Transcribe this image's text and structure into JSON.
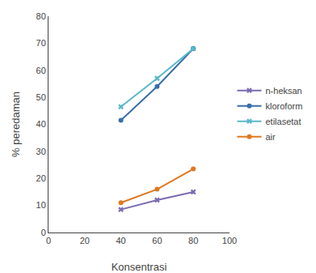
{
  "chart_data": {
    "type": "line",
    "x": [
      40,
      60,
      80
    ],
    "series": [
      {
        "name": "n-heksan",
        "color": "#7B6BB0",
        "marker": "x",
        "line_style": "solid",
        "values": [
          8.5,
          12,
          15
        ]
      },
      {
        "name": "kloroform",
        "color": "#3A6EA8",
        "marker": "circle",
        "line_style": "solid",
        "values": [
          41.5,
          54,
          68
        ]
      },
      {
        "name": "etilasetat",
        "color": "#5BB8C8",
        "marker": "x",
        "line_style": "solid",
        "values": [
          46.5,
          57,
          68
        ]
      },
      {
        "name": "air",
        "color": "#E07820",
        "marker": "circle",
        "line_style": "solid",
        "values": [
          11,
          16,
          23.5
        ]
      }
    ],
    "xlabel": "Konsentrasi",
    "ylabel": "% peredaman",
    "xlim": [
      0,
      100
    ],
    "ylim": [
      0,
      80
    ],
    "xticks": [
      0,
      20,
      40,
      60,
      80,
      100
    ],
    "yticks": [
      0,
      10,
      20,
      30,
      40,
      50,
      60,
      70,
      80
    ],
    "grid": false,
    "legend": "right"
  }
}
